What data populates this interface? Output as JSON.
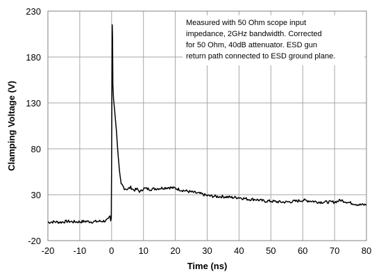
{
  "chart_data": {
    "type": "line",
    "title": "",
    "xlabel": "Time (ns)",
    "ylabel": "Clamping Voltage (V)",
    "xlim": [
      -20,
      80
    ],
    "ylim": [
      -20,
      230
    ],
    "xticks": [
      -20,
      -10,
      0,
      10,
      20,
      30,
      40,
      50,
      60,
      70,
      80
    ],
    "yticks": [
      -20,
      30,
      80,
      130,
      180,
      230
    ],
    "grid": true,
    "legend": "none",
    "annotation": [
      "Measured with 50 Ohm scope input",
      "impedance, 2GHz bandwidth. Corrected",
      "for 50 Ohm, 40dB attenuator. ESD gun",
      "return path connected to ESD ground plane."
    ],
    "series": [
      {
        "color": "#000000",
        "points": [
          [
            -20,
            0
          ],
          [
            -18,
            0.5
          ],
          [
            -16,
            0
          ],
          [
            -14,
            1
          ],
          [
            -12,
            0.5
          ],
          [
            -10,
            0.5
          ],
          [
            -8,
            1
          ],
          [
            -6,
            0.5
          ],
          [
            -4,
            1
          ],
          [
            -2,
            1.5
          ],
          [
            -1,
            3
          ],
          [
            -0.5,
            7
          ],
          [
            -0.3,
            1.5
          ],
          [
            -0.1,
            5
          ],
          [
            0,
            60
          ],
          [
            0.1,
            150
          ],
          [
            0.2,
            215
          ],
          [
            0.3,
            200
          ],
          [
            0.4,
            150
          ],
          [
            0.6,
            135
          ],
          [
            1,
            120
          ],
          [
            1.5,
            100
          ],
          [
            2,
            75
          ],
          [
            2.5,
            55
          ],
          [
            3,
            42
          ],
          [
            4,
            37
          ],
          [
            5,
            36
          ],
          [
            6,
            38
          ],
          [
            7,
            35
          ],
          [
            8,
            36
          ],
          [
            9,
            33
          ],
          [
            10,
            37
          ],
          [
            12,
            36
          ],
          [
            15,
            37
          ],
          [
            18,
            38
          ],
          [
            20,
            37
          ],
          [
            22,
            35
          ],
          [
            25,
            33
          ],
          [
            28,
            31
          ],
          [
            30,
            29
          ],
          [
            33,
            28
          ],
          [
            35,
            28
          ],
          [
            38,
            27
          ],
          [
            40,
            27
          ],
          [
            43,
            25
          ],
          [
            45,
            25
          ],
          [
            48,
            23
          ],
          [
            50,
            23
          ],
          [
            53,
            22
          ],
          [
            55,
            22
          ],
          [
            58,
            23
          ],
          [
            60,
            24
          ],
          [
            63,
            23
          ],
          [
            65,
            22
          ],
          [
            68,
            22
          ],
          [
            70,
            22
          ],
          [
            72,
            24
          ],
          [
            75,
            21
          ],
          [
            78,
            19
          ],
          [
            80,
            19
          ]
        ]
      }
    ]
  }
}
